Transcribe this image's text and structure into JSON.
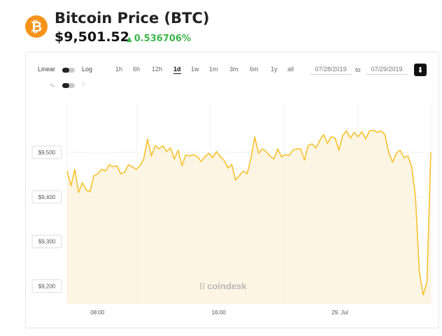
{
  "header": {
    "logo_glyph": "₿",
    "title": "Bitcoin Price (BTC)",
    "price": "$9,501.52",
    "change": "0.536706%",
    "change_color": "#3cb64a"
  },
  "controls": {
    "scale_linear": "Linear",
    "scale_log": "Log",
    "ranges": [
      "1h",
      "6h",
      "12h",
      "1d",
      "1w",
      "1m",
      "3m",
      "6m",
      "1y",
      "all"
    ],
    "active_range": "1d",
    "date_from": "07/28/2019",
    "date_to_label": "to",
    "date_to": "07/29/2019",
    "download_icon": "download-icon",
    "line_chart_icon": "line-chart-icon",
    "candle_chart_icon": "candlestick-icon"
  },
  "watermark": "coindesk",
  "chart_data": {
    "type": "area",
    "line_color": "#f6c12d",
    "fill_color": "#fdf2dc",
    "y_ticks": [
      "$9,200",
      "$9,300",
      "$9,400",
      "$9,500"
    ],
    "y_tick_values": [
      9200,
      9300,
      9400,
      9500
    ],
    "ylim": [
      9160,
      9610
    ],
    "x_ticks": [
      "08:00",
      "16:00",
      "29. Jul"
    ],
    "x_tick_positions": [
      2,
      10,
      18
    ],
    "grid": true,
    "series": [
      {
        "values": [
          9458,
          9425,
          9462,
          9410,
          9432,
          9415,
          9412,
          9448,
          9452,
          9462,
          9458,
          9472,
          9468,
          9470,
          9452,
          9455,
          9472,
          9468,
          9462,
          9470,
          9485,
          9530,
          9492,
          9515,
          9508,
          9515,
          9502,
          9510,
          9485,
          9505,
          9470,
          9494,
          9492,
          9495,
          9490,
          9480,
          9490,
          9498,
          9488,
          9502,
          9490,
          9482,
          9465,
          9473,
          9438,
          9448,
          9458,
          9452,
          9485,
          9535,
          9498,
          9508,
          9502,
          9492,
          9485,
          9508,
          9490,
          9495,
          9493,
          9505,
          9508,
          9508,
          9483,
          9516,
          9519,
          9510,
          9527,
          9540,
          9520,
          9535,
          9532,
          9505,
          9538,
          9548,
          9532,
          9545,
          9535,
          9546,
          9530,
          9548,
          9550,
          9545,
          9548,
          9540,
          9500,
          9478,
          9498,
          9505,
          9488,
          9492,
          9468,
          9400,
          9232,
          9180,
          9210,
          9500
        ]
      }
    ]
  }
}
